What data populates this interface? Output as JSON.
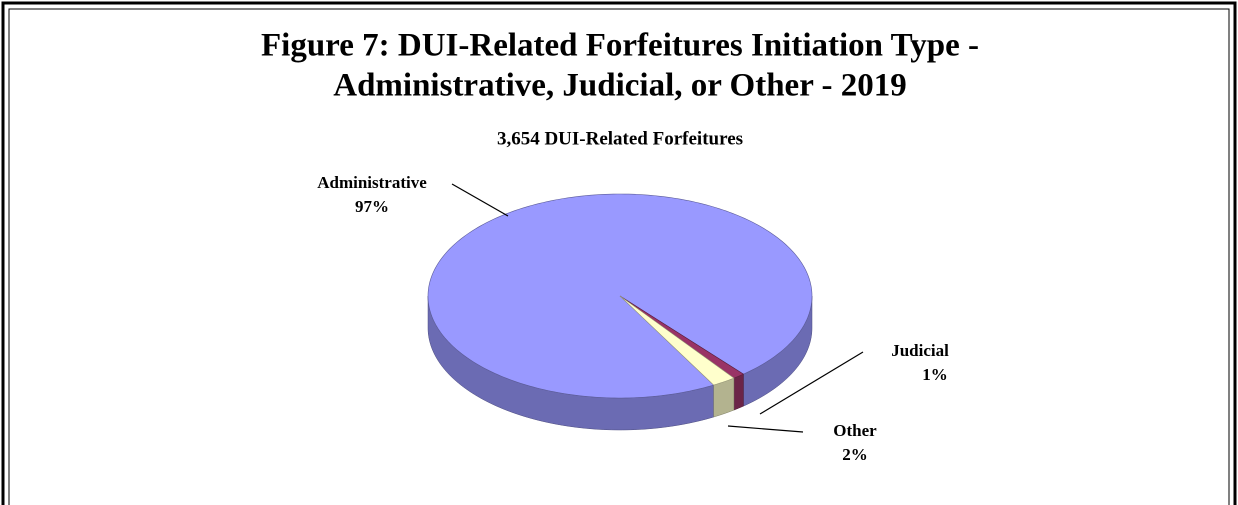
{
  "chart_data": {
    "type": "pie",
    "title": [
      "Figure 7:  DUI-Related Forfeitures Initiation Type -",
      "Administrative, Judicial, or Other - 2019"
    ],
    "subtitle": "3,654 DUI-Related  Forfeitures",
    "categories": [
      "Administrative",
      "Judicial",
      "Other"
    ],
    "values": [
      97,
      1,
      2
    ],
    "value_labels": [
      "97%",
      "1%",
      "2%"
    ],
    "colors": [
      "#9999ff",
      "#993366",
      "#ffffcc"
    ]
  }
}
